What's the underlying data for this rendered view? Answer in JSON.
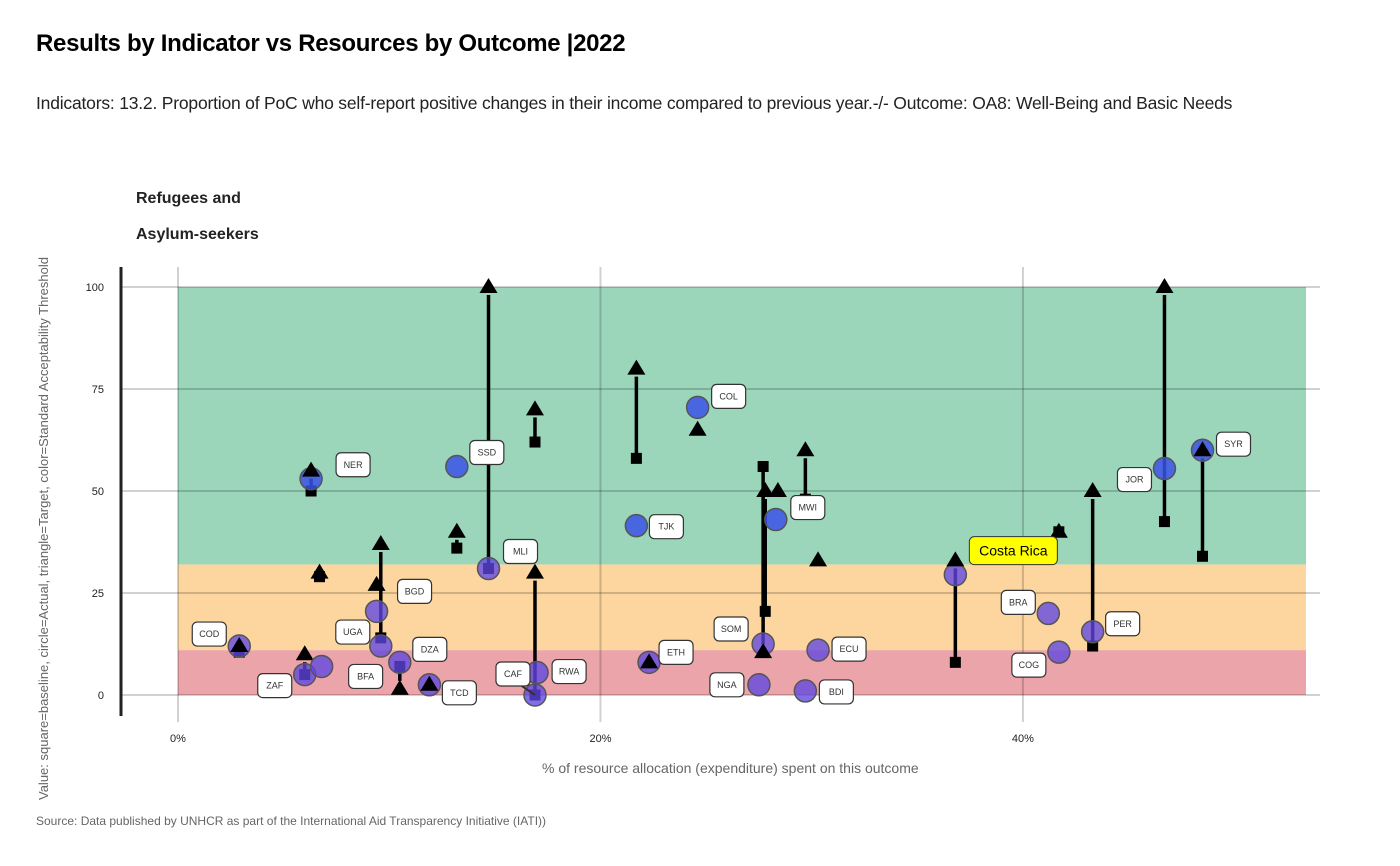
{
  "header": {
    "title": "Results by Indicator vs Resources by Outcome |2022",
    "subtitle": "Indicators: 13.2. Proportion of PoC who self-report positive changes in their income compared to previous year.-/- Outcome: OA8: Well-Being and Basic Needs"
  },
  "panel": {
    "title_line1": "Refugees and",
    "title_line2": "Asylum-seekers"
  },
  "footer": {
    "source": "Source: Data published by UNHCR as part of the International Aid Transparency Initiative (IATI))"
  },
  "chart_data": {
    "type": "scatter",
    "title": "Results by Indicator vs Resources by Outcome |2022",
    "xlabel": "% of resource allocation (expenditure) spent on this outcome",
    "ylabel": "Value: square=baseline, circle=Actual, triangle=Target, color=Standard Acceptability Threshold",
    "xlim": [
      0,
      0.534
    ],
    "ylim": [
      0,
      100
    ],
    "x_ticks": [
      {
        "value": 0,
        "label": "0%"
      },
      {
        "value": 0.2,
        "label": "20%"
      },
      {
        "value": 0.4,
        "label": "40%"
      }
    ],
    "y_ticks": [
      {
        "value": 0,
        "label": "0"
      },
      {
        "value": 25,
        "label": "25"
      },
      {
        "value": 50,
        "label": "50"
      },
      {
        "value": 75,
        "label": "75"
      },
      {
        "value": 100,
        "label": "100"
      }
    ],
    "grid": true,
    "bands": [
      {
        "from": 0,
        "to": 11,
        "color": "#eba5aa",
        "meaning": "below threshold"
      },
      {
        "from": 11,
        "to": 32,
        "color": "#fdd59e",
        "meaning": "near threshold"
      },
      {
        "from": 32,
        "to": 100,
        "color": "#9bd6bb",
        "meaning": "above threshold"
      }
    ],
    "highlight": {
      "code": "CRI",
      "label": "Costa Rica",
      "color": "#ffff00"
    },
    "points": [
      {
        "code": "COD",
        "x": 0.029,
        "baseline": 10.5,
        "actual": 12,
        "target": 12
      },
      {
        "code": "ZAF",
        "x": 0.06,
        "baseline": 5,
        "actual": 5,
        "target": 10
      },
      {
        "code": "BFA",
        "x": 0.068,
        "baseline": null,
        "actual": 7,
        "target": null
      },
      {
        "code": "NER",
        "x": 0.063,
        "baseline": 50,
        "actual": 53,
        "target": 55
      },
      {
        "code": null,
        "x": 0.067,
        "baseline": 29,
        "actual": null,
        "target": 30
      },
      {
        "code": "UGA",
        "x": 0.096,
        "baseline": 14,
        "actual": 12,
        "target": 37
      },
      {
        "code": "BGD",
        "x": 0.094,
        "baseline": null,
        "actual": 20.5,
        "target": 27
      },
      {
        "code": "DZA",
        "x": 0.105,
        "baseline": 7,
        "actual": 8,
        "target": 1.5
      },
      {
        "code": "TCD",
        "x": 0.119,
        "baseline": null,
        "actual": 2.5,
        "target": 2.5
      },
      {
        "code": null,
        "x": 0.132,
        "baseline": 36,
        "actual": null,
        "target": 40
      },
      {
        "code": "SSD",
        "x": 0.132,
        "baseline": null,
        "actual": 56,
        "target": null
      },
      {
        "code": "MLI",
        "x": 0.147,
        "baseline": 31,
        "actual": 31,
        "target": 100
      },
      {
        "code": null,
        "x": 0.169,
        "baseline": 62,
        "actual": null,
        "target": 70
      },
      {
        "code": "CAF",
        "x": 0.169,
        "baseline": 0,
        "actual": 0,
        "target": 30
      },
      {
        "code": "RWA",
        "x": 0.17,
        "baseline": null,
        "actual": 5.5,
        "target": null
      },
      {
        "code": null,
        "x": 0.217,
        "baseline": 58,
        "actual": null,
        "target": 80
      },
      {
        "code": "TJK",
        "x": 0.217,
        "baseline": null,
        "actual": 41.5,
        "target": null
      },
      {
        "code": "ETH",
        "x": 0.223,
        "baseline": null,
        "actual": 8,
        "target": 8
      },
      {
        "code": "COL",
        "x": 0.246,
        "baseline": null,
        "actual": 70.5,
        "target": 65
      },
      {
        "code": "NGA",
        "x": 0.275,
        "baseline": null,
        "actual": 2.5,
        "target": null
      },
      {
        "code": "SOM",
        "x": 0.277,
        "baseline": 56,
        "actual": 12.5,
        "target": 10.5
      },
      {
        "code": null,
        "x": 0.278,
        "baseline": 20.5,
        "actual": null,
        "target": 50
      },
      {
        "code": null,
        "x": 0.284,
        "baseline": null,
        "actual": null,
        "target": 50
      },
      {
        "code": "MWI",
        "x": 0.283,
        "baseline": null,
        "actual": 43,
        "target": null
      },
      {
        "code": null,
        "x": 0.297,
        "baseline": 48,
        "actual": null,
        "target": 60
      },
      {
        "code": "BDI",
        "x": 0.297,
        "baseline": null,
        "actual": 1,
        "target": null
      },
      {
        "code": "ECU",
        "x": 0.303,
        "baseline": null,
        "actual": 11,
        "target": 33
      },
      {
        "code": "CRI",
        "x": 0.368,
        "baseline": 8,
        "actual": 29.5,
        "target": 33
      },
      {
        "code": "BRA",
        "x": 0.412,
        "baseline": null,
        "actual": 20,
        "target": null
      },
      {
        "code": null,
        "x": 0.417,
        "baseline": 40,
        "actual": null,
        "target": 40
      },
      {
        "code": "COG",
        "x": 0.417,
        "baseline": null,
        "actual": 10.5,
        "target": null
      },
      {
        "code": "PER",
        "x": 0.433,
        "baseline": 12,
        "actual": 15.5,
        "target": 50
      },
      {
        "code": "JOR",
        "x": 0.467,
        "baseline": 42.5,
        "actual": 55.5,
        "target": 100
      },
      {
        "code": "SYR",
        "x": 0.485,
        "baseline": 34,
        "actual": 60,
        "target": 60
      }
    ]
  }
}
